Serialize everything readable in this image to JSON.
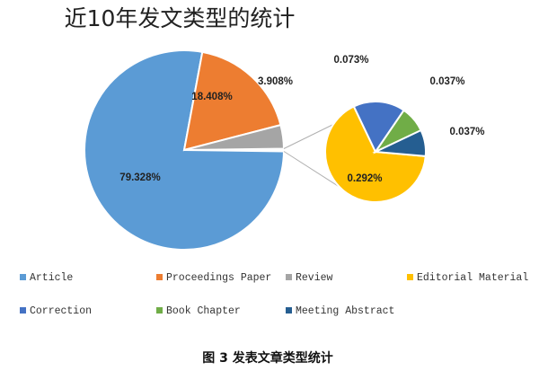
{
  "chart_data": {
    "type": "pie",
    "title": "近10年发文类型的统计",
    "main_pie": {
      "slices": [
        {
          "name": "Article",
          "value": 79.328,
          "label": "79.328%",
          "color": "#5B9BD5"
        },
        {
          "name": "Proceedings Paper",
          "value": 18.408,
          "label": "18.408%",
          "color": "#ED7D31"
        },
        {
          "name": "Review",
          "value": 3.908,
          "label": "3.908%",
          "color": "#A5A5A5"
        }
      ]
    },
    "sub_pie": {
      "slices": [
        {
          "name": "Editorial Material",
          "value": 0.292,
          "label": "0.292%",
          "color": "#FFC000"
        },
        {
          "name": "Correction",
          "value": 0.073,
          "label": "0.073%",
          "color": "#4472C4"
        },
        {
          "name": "Book Chapter",
          "value": 0.037,
          "label": "0.037%",
          "color": "#70AD47"
        },
        {
          "name": "Meeting Abstract",
          "value": 0.037,
          "label": "0.037%",
          "color": "#255E91"
        }
      ]
    },
    "legend": [
      {
        "name": "Article",
        "color": "#5B9BD5"
      },
      {
        "name": "Proceedings Paper",
        "color": "#ED7D31"
      },
      {
        "name": "Review",
        "color": "#A5A5A5"
      },
      {
        "name": "Editorial Material",
        "color": "#FFC000"
      },
      {
        "name": "Correction",
        "color": "#4472C4"
      },
      {
        "name": "Book Chapter",
        "color": "#70AD47"
      },
      {
        "name": "Meeting Abstract",
        "color": "#255E91"
      }
    ],
    "legend_placement": "bottom"
  },
  "caption": "图 3  发表文章类型统计"
}
